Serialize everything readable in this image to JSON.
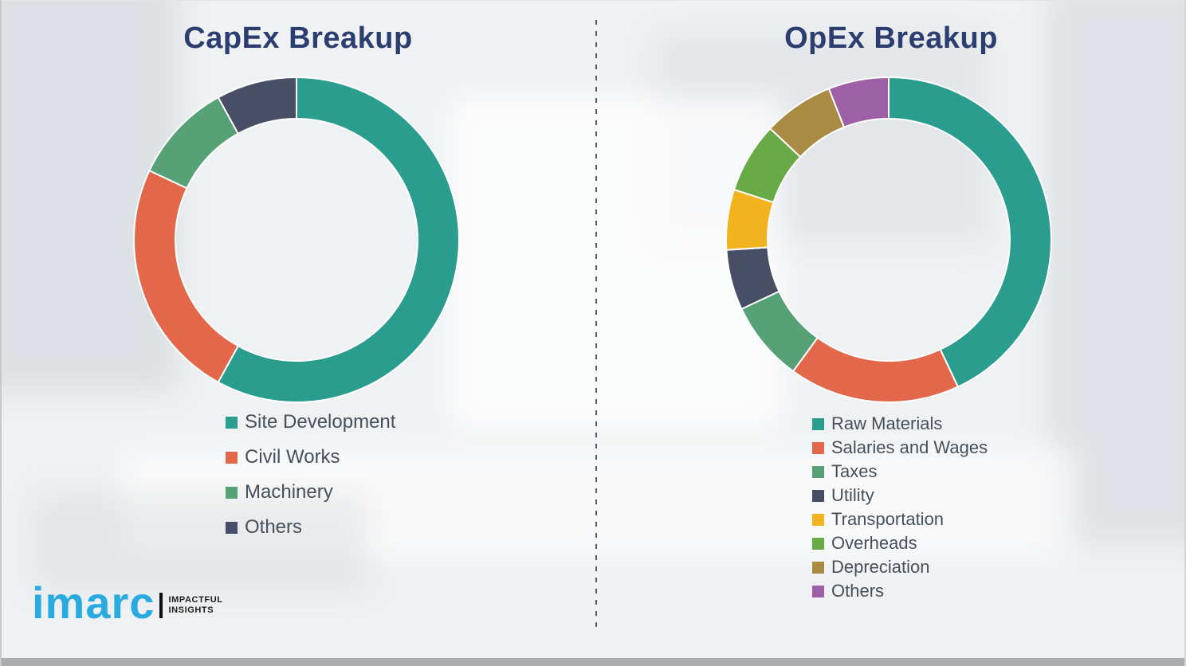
{
  "page": {
    "background_color": "#eff1f3",
    "divider_style": "vertical dashed line between panels",
    "divider_color": "#565b63",
    "bottom_strip_color": "#aaacae"
  },
  "chart_data": [
    {
      "type": "pie",
      "subtype": "donut",
      "title": "CapEx Breakup",
      "title_color": "#2b3e6f",
      "categories": [
        "Site Development",
        "Civil Works",
        "Machinery",
        "Others"
      ],
      "values": [
        58,
        24,
        10,
        8
      ],
      "values_note": "percent, estimated from arc angles (no data labels shown)",
      "colors": [
        "#2a9d8f",
        "#e3674a",
        "#57a177",
        "#474e66"
      ],
      "start_angle_deg": 0,
      "direction": "clockwise",
      "legend_position": "below chart, left-aligned",
      "data_labels": false
    },
    {
      "type": "pie",
      "subtype": "donut",
      "title": "OpEx Breakup",
      "title_color": "#2b3e6f",
      "categories": [
        "Raw Materials",
        "Salaries and Wages",
        "Taxes",
        "Utility",
        "Transportation",
        "Overheads",
        "Depreciation",
        "Others"
      ],
      "values": [
        43,
        17,
        8,
        6,
        6,
        7,
        7,
        6
      ],
      "values_note": "percent, estimated from arc angles (no data labels shown)",
      "colors": [
        "#2a9d8f",
        "#e3674a",
        "#57a177",
        "#474e66",
        "#f3b31f",
        "#68aa45",
        "#a98b43",
        "#9d5fa6"
      ],
      "start_angle_deg": 0,
      "direction": "clockwise",
      "legend_position": "below chart, left-aligned",
      "data_labels": false
    }
  ],
  "logo": {
    "brand": "imarc",
    "brand_color": "#29aae1",
    "tagline_line1": "IMPACTFUL",
    "tagline_line2": "INSIGHTS"
  }
}
